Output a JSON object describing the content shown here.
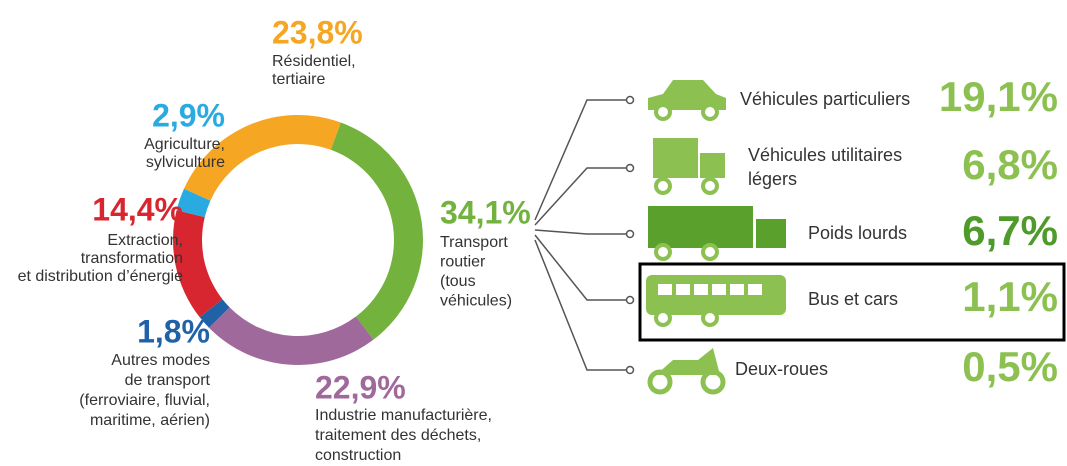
{
  "chart_data": {
    "type": "donut",
    "segments": [
      {
        "value": 34.1,
        "value_label": "34,1%",
        "color": "#72b23d",
        "label": [
          "Transport",
          "routier",
          "(tous",
          "véhicules)"
        ]
      },
      {
        "value": 22.9,
        "value_label": "22,9%",
        "color": "#a0699b",
        "label": [
          "Industrie manufacturière,",
          "traitement des déchets,",
          "construction"
        ]
      },
      {
        "value": 1.8,
        "value_label": "1,8%",
        "color": "#2062a8",
        "label": [
          "Autres modes",
          "de transport",
          "(ferroviaire, fluvial,",
          "maritime, aérien)"
        ]
      },
      {
        "value": 14.4,
        "value_label": "14,4%",
        "color": "#d7262f",
        "label": [
          "Extraction,",
          "transformation",
          "et distribution d’énergie"
        ]
      },
      {
        "value": 2.9,
        "value_label": "2,9%",
        "color": "#29abe2",
        "label": [
          "Agriculture,",
          "sylviculture"
        ]
      },
      {
        "value": 23.8,
        "value_label": "23,8%",
        "color": "#f5a623",
        "label": [
          "Résidentiel,",
          "tertiaire"
        ]
      }
    ],
    "breakdown": [
      {
        "label": [
          "Véhicules particuliers"
        ],
        "share": "19,1%"
      },
      {
        "label": [
          "Véhicules utilitaires",
          "légers"
        ],
        "share": "6,8%"
      },
      {
        "label": [
          "Poids lourds"
        ],
        "share": "6,7%"
      },
      {
        "label": [
          "Bus et cars"
        ],
        "share": "1,1%"
      },
      {
        "label": [
          "Deux-roues"
        ],
        "share": "0,5%"
      }
    ]
  }
}
